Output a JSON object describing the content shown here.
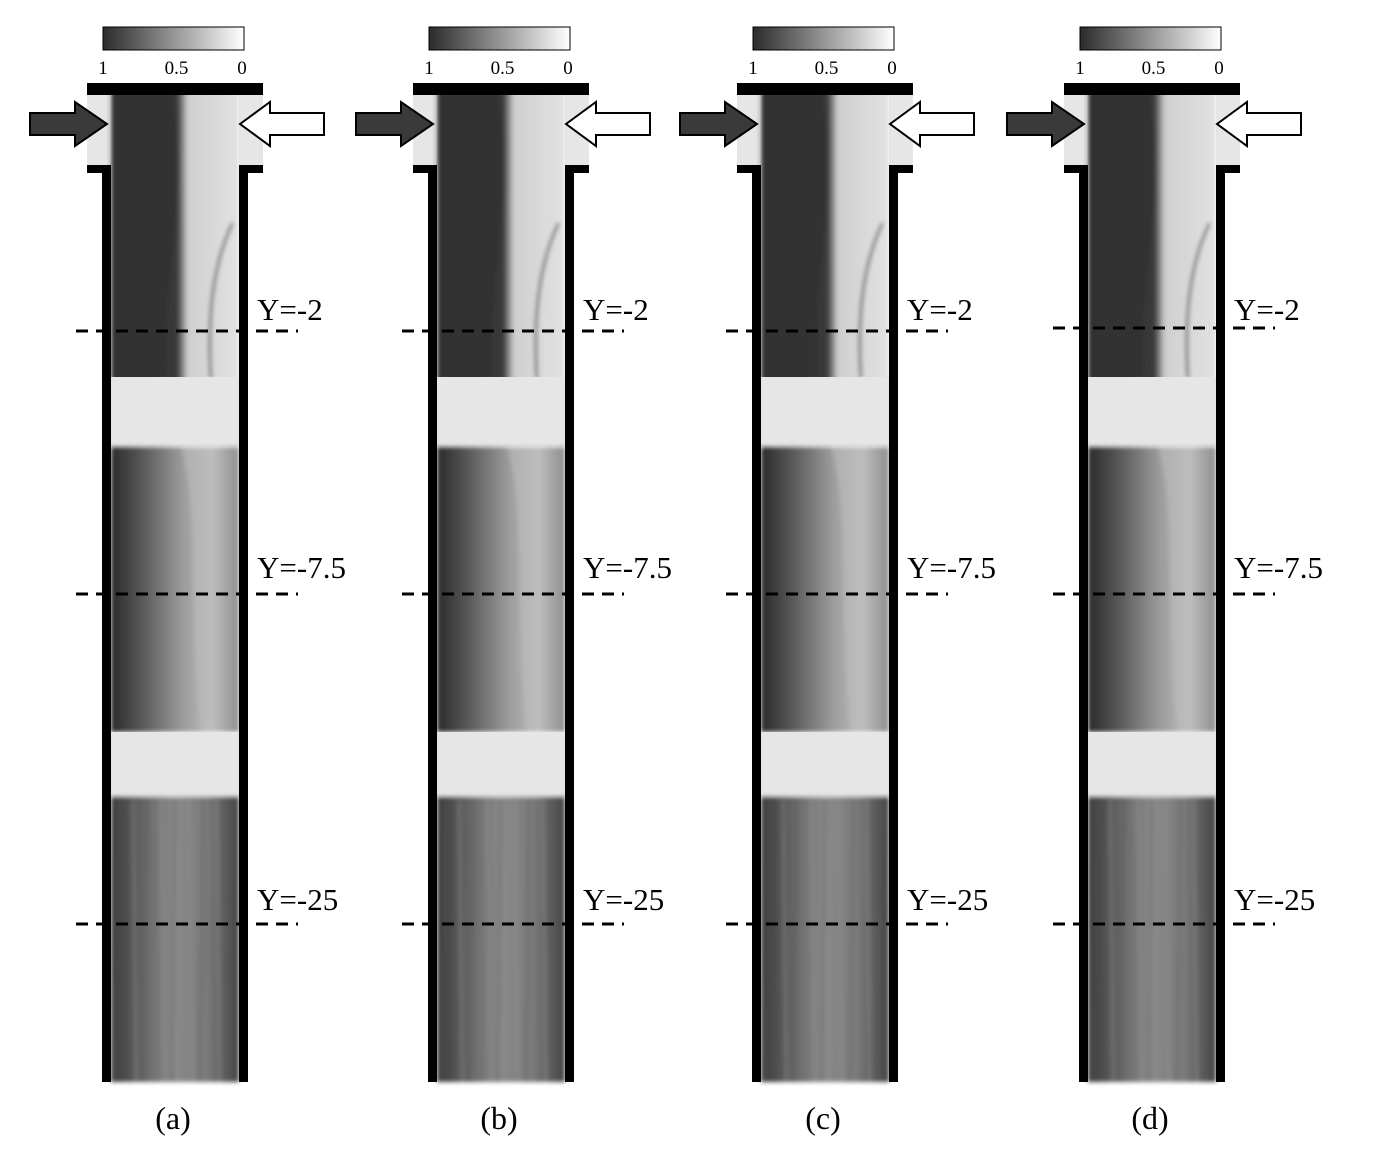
{
  "colorbar": {
    "ticks": [
      "1",
      "0.5",
      "0"
    ]
  },
  "levels": [
    {
      "id": "y2",
      "label": "Y=-2"
    },
    {
      "id": "y75",
      "label": "Y=-7.5"
    },
    {
      "id": "y25",
      "label": "Y=-25"
    }
  ],
  "panels": [
    {
      "id": "a",
      "caption": "(a)"
    },
    {
      "id": "b",
      "caption": "(b)"
    },
    {
      "id": "c",
      "caption": "(c)"
    },
    {
      "id": "d",
      "caption": "(d)"
    }
  ],
  "colors": {
    "wall": "#000000",
    "window_block": "#e6e6e6",
    "inlet_dark_arrow": "#3a3a3a",
    "inlet_light_arrow": "#ffffff",
    "colorbar_start": "#2b2b2b",
    "colorbar_end": "#ffffff"
  }
}
